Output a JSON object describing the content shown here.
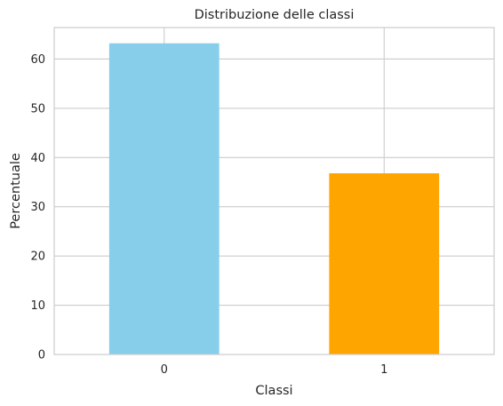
{
  "chart_data": {
    "type": "bar",
    "title": "Distribuzione delle classi",
    "xlabel": "Classi",
    "ylabel": "Percentuale",
    "categories": [
      "0",
      "1"
    ],
    "values": [
      63.2,
      36.8
    ],
    "colors": [
      "#87ceeb",
      "#ffa500"
    ],
    "ylim": [
      0,
      66.4
    ],
    "yticks": [
      0,
      10,
      20,
      30,
      40,
      50,
      60
    ],
    "grid": true,
    "legend": "none"
  }
}
